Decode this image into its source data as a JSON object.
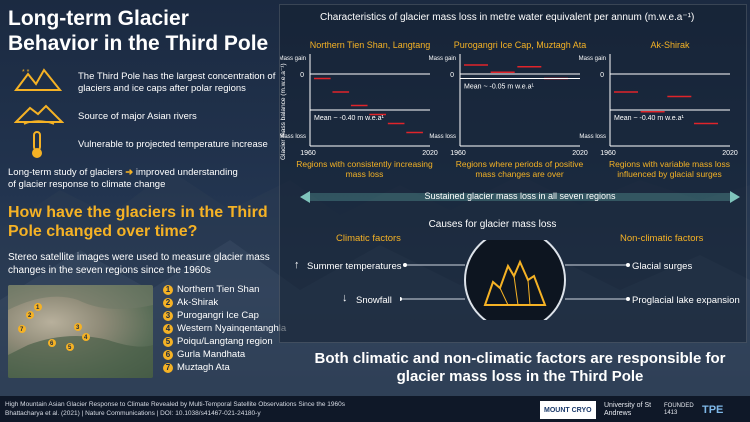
{
  "title": "Long-term Glacier Behavior in the Third Pole",
  "facts": [
    {
      "icon": "mountains-icon",
      "text": "The Third Pole has the largest concentration of glaciers and ice caps after polar regions"
    },
    {
      "icon": "river-icon",
      "text": "Source of major Asian rivers"
    },
    {
      "icon": "thermometer-icon",
      "text": "Vulnerable to projected temperature increase"
    }
  ],
  "study": {
    "left": "Long-term study of glaciers",
    "right": "improved understanding",
    "rest": "of glacier response to climate change"
  },
  "question": "How have the glaciers in the Third Pole changed over time?",
  "stereo": "Stereo satellite images were used to measure glacier mass changes in the seven regions since the 1960s",
  "regions": [
    {
      "n": "1",
      "name": "Northern Tien Shan"
    },
    {
      "n": "2",
      "name": "Ak-Shirak"
    },
    {
      "n": "3",
      "name": "Purogangri Ice Cap"
    },
    {
      "n": "4",
      "name": "Western Nyainqentanghla"
    },
    {
      "n": "5",
      "name": "Poiqu/Langtang region"
    },
    {
      "n": "6",
      "name": "Gurla Mandhata"
    },
    {
      "n": "7",
      "name": "Muztagh Ata"
    }
  ],
  "chart_data": {
    "type": "line",
    "title": "Characteristics of glacier mass loss in metre water equivalent per annum (m.w.e.a⁻¹)",
    "ylabel": "Glacier mass balance (m.w.e.a⁻¹)",
    "y_top_label": "Mass gain",
    "y_bottom_label": "Mass loss",
    "zero_label": "0",
    "x_start": "1960",
    "x_end": "2020",
    "panels": [
      {
        "name": "Northern Tien Shan, Langtang",
        "mean_label": "Mean ~ -0.40 m w.e.a¹",
        "mean": -0.4,
        "segments": [
          [
            -0.05,
            -0.1
          ],
          [
            -0.2,
            -0.25
          ],
          [
            -0.35,
            -0.4
          ],
          [
            -0.45,
            -0.5
          ],
          [
            -0.55,
            -0.6
          ],
          [
            -0.65,
            -0.7
          ]
        ],
        "description": "Regions with consistently increasing mass loss"
      },
      {
        "name": "Purogangri Ice Cap, Muztagh Ata",
        "mean_label": "Mean ~ -0.05 m w.e.a¹",
        "mean": -0.05,
        "segments": [
          [
            0.1,
            0.1
          ],
          [
            0.02,
            0.02
          ],
          [
            0.08,
            0.08
          ],
          [
            -0.05,
            -0.05
          ]
        ],
        "description": "Regions where periods of positive mass changes are over"
      },
      {
        "name": "Ak-Shirak",
        "mean_label": "Mean ~ -0.40 m w.e.a¹",
        "mean": -0.4,
        "segments": [
          [
            -0.2,
            -0.2
          ],
          [
            -0.42,
            -0.42
          ],
          [
            -0.25,
            -0.25
          ],
          [
            -0.55,
            -0.55
          ]
        ],
        "description": "Regions with variable mass loss influenced by glacial surges"
      }
    ]
  },
  "sustained": "Sustained glacier mass loss in all seven regions",
  "causes": {
    "title": "Causes for glacier mass loss",
    "climatic": "Climatic factors",
    "nonclimatic": "Non-climatic factors",
    "c1": "Summer temperatures",
    "c2": "Snowfall",
    "n1": "Glacial surges",
    "n2": "Proglacial lake expansion"
  },
  "conclusion": "Both climatic and non-climatic factors are responsible for glacier mass loss in the Third Pole",
  "footer": {
    "line1": "High Mountain Asian Glacier Response to Climate Revealed by Multi-Temporal Satellite Observations Since the 1960s",
    "line2": "Bhattacharya et al. (2021)  |  Nature Communications  |  DOI: 10.1038/s41467-021-24180-y"
  },
  "logos": {
    "mountcryo": "MOUNT CRYO",
    "standrews": "University of St Andrews",
    "founded": "FOUNDED 1413",
    "tpe": "TPE"
  }
}
